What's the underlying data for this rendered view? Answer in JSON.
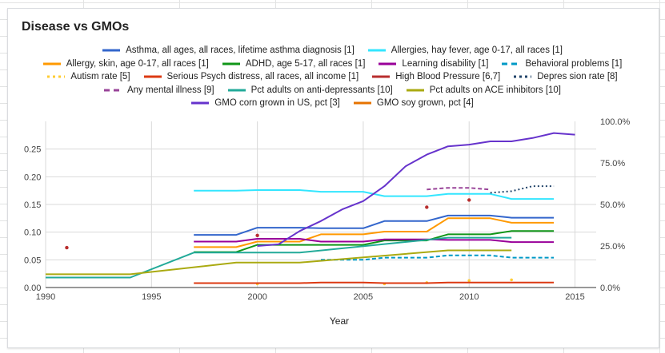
{
  "chart_data": {
    "type": "line",
    "title": "Disease vs GMOs",
    "xlabel": "Year",
    "ylabel": "",
    "xlim": [
      1990,
      2016
    ],
    "xticks": [
      "1990",
      "1995",
      "2000",
      "2005",
      "2010",
      "2015"
    ],
    "ylim_left": [
      0,
      0.3
    ],
    "yticks_left": [
      "0.00",
      "0.05",
      "0.10",
      "0.15",
      "0.20",
      "0.25"
    ],
    "ylim_right": [
      0,
      100
    ],
    "yticks_right": [
      "0.0%",
      "25.0%",
      "50.0%",
      "75.0%",
      "100.0%"
    ],
    "legend_position": "top",
    "grid": true,
    "series": [
      {
        "name": "Asthma, all ages, all races, lifetime asthma diagnosis [1]",
        "color": "#3366cc",
        "style": "solid",
        "axis": "left",
        "x": [
          1997,
          1998,
          1999,
          2000,
          2001,
          2002,
          2003,
          2004,
          2005,
          2006,
          2007,
          2008,
          2009,
          2010,
          2011,
          2012,
          2013,
          2014
        ],
        "y": [
          0.095,
          0.095,
          0.095,
          0.108,
          0.108,
          0.108,
          0.107,
          0.107,
          0.107,
          0.12,
          0.12,
          0.12,
          0.13,
          0.13,
          0.13,
          0.126,
          0.126,
          0.126
        ]
      },
      {
        "name": "Allergies, hay fever, age 0-17, all races [1]",
        "color": "#33e6ff",
        "style": "solid",
        "axis": "left",
        "x": [
          1997,
          1998,
          1999,
          2000,
          2001,
          2002,
          2003,
          2004,
          2005,
          2006,
          2007,
          2008,
          2009,
          2010,
          2011,
          2012,
          2013,
          2014
        ],
        "y": [
          0.175,
          0.175,
          0.175,
          0.176,
          0.176,
          0.176,
          0.173,
          0.173,
          0.173,
          0.165,
          0.165,
          0.165,
          0.169,
          0.169,
          0.169,
          0.16,
          0.16,
          0.16
        ]
      },
      {
        "name": "Allergy, skin, age 0-17, all races [1]",
        "color": "#ff9900",
        "style": "solid",
        "axis": "left",
        "x": [
          1997,
          1998,
          1999,
          2000,
          2001,
          2002,
          2003,
          2004,
          2005,
          2006,
          2007,
          2008,
          2009,
          2010,
          2011,
          2012,
          2013,
          2014
        ],
        "y": [
          0.073,
          0.073,
          0.073,
          0.083,
          0.083,
          0.083,
          0.096,
          0.096,
          0.096,
          0.101,
          0.101,
          0.101,
          0.125,
          0.125,
          0.125,
          0.117,
          0.117,
          0.117
        ]
      },
      {
        "name": "ADHD, age 5-17, all races [1]",
        "color": "#109618",
        "style": "solid",
        "axis": "left",
        "x": [
          1997,
          1998,
          1999,
          2000,
          2001,
          2002,
          2003,
          2004,
          2005,
          2006,
          2007,
          2008,
          2009,
          2010,
          2011,
          2012,
          2013,
          2014
        ],
        "y": [
          0.064,
          0.064,
          0.064,
          0.077,
          0.077,
          0.077,
          0.077,
          0.077,
          0.077,
          0.085,
          0.085,
          0.085,
          0.096,
          0.096,
          0.096,
          0.102,
          0.102,
          0.102
        ]
      },
      {
        "name": "Learning disability [1]",
        "color": "#990099",
        "style": "solid",
        "axis": "left",
        "x": [
          1997,
          1998,
          1999,
          2000,
          2001,
          2002,
          2003,
          2004,
          2005,
          2006,
          2007,
          2008,
          2009,
          2010,
          2011,
          2012,
          2013,
          2014
        ],
        "y": [
          0.083,
          0.083,
          0.083,
          0.088,
          0.088,
          0.088,
          0.083,
          0.083,
          0.083,
          0.087,
          0.087,
          0.087,
          0.086,
          0.086,
          0.086,
          0.082,
          0.082,
          0.082
        ]
      },
      {
        "name": "Behavioral problems [1]",
        "color": "#0099c6",
        "style": "dashed",
        "axis": "left",
        "x": [
          2003,
          2004,
          2005,
          2006,
          2007,
          2008,
          2009,
          2010,
          2011,
          2012,
          2013,
          2014
        ],
        "y": [
          0.05,
          0.05,
          0.05,
          0.054,
          0.054,
          0.054,
          0.058,
          0.058,
          0.058,
          0.054,
          0.054,
          0.054
        ]
      },
      {
        "name": "Autism rate [5]",
        "color": "#ffcc33",
        "style": "dotted",
        "axis": "left",
        "x": [
          2000,
          2006,
          2008,
          2010,
          2012
        ],
        "y": [
          0.0067,
          0.0067,
          0.0088,
          0.0125,
          0.0138
        ]
      },
      {
        "name": "Serious Psych distress, all races, all income [1]",
        "color": "#dc3912",
        "style": "solid",
        "axis": "left",
        "x": [
          1997,
          1998,
          1999,
          2000,
          2001,
          2002,
          2003,
          2004,
          2005,
          2006,
          2007,
          2008,
          2009,
          2010,
          2011,
          2012,
          2013,
          2014
        ],
        "y": [
          0.008,
          0.008,
          0.008,
          0.008,
          0.008,
          0.008,
          0.009,
          0.009,
          0.009,
          0.008,
          0.008,
          0.008,
          0.009,
          0.009,
          0.009,
          0.009,
          0.009,
          0.009
        ]
      },
      {
        "name": "High Blood Pressure [6,7]",
        "color": "#b82e2e",
        "style": "points",
        "axis": "left",
        "x": [
          1991,
          2000,
          2008,
          2010
        ],
        "y": [
          0.072,
          0.094,
          0.145,
          0.158
        ]
      },
      {
        "name": "Depres sion rate [8]",
        "color": "#22446a",
        "style": "dotted",
        "axis": "left",
        "x": [
          2011,
          2012,
          2013,
          2014
        ],
        "y": [
          0.171,
          0.174,
          0.183,
          0.183
        ]
      },
      {
        "name": "Any mental illness [9]",
        "color": "#994499",
        "style": "dashed",
        "axis": "left",
        "x": [
          2008,
          2009,
          2010,
          2011
        ],
        "y": [
          0.177,
          0.18,
          0.18,
          0.177
        ]
      },
      {
        "name": "Pct adults on anti-depressants [10]",
        "color": "#22aa99",
        "style": "solid",
        "axis": "left",
        "x": [
          1990,
          1994,
          1997,
          2002,
          2009,
          2012
        ],
        "y": [
          0.018,
          0.018,
          0.063,
          0.063,
          0.09,
          0.09
        ]
      },
      {
        "name": "Pct adults on ACE inhibitors [10]",
        "color": "#aaaa11",
        "style": "solid",
        "axis": "left",
        "x": [
          1990,
          1994,
          1999,
          2002,
          2009,
          2012
        ],
        "y": [
          0.024,
          0.024,
          0.045,
          0.045,
          0.067,
          0.067
        ]
      },
      {
        "name": "GMO corn grown in US, pct [3]",
        "color": "#6633cc",
        "style": "solid",
        "axis": "right",
        "x": [
          2000,
          2001,
          2002,
          2003,
          2004,
          2005,
          2006,
          2007,
          2008,
          2009,
          2010,
          2011,
          2012,
          2013,
          2014,
          2015
        ],
        "y": [
          25,
          26,
          34,
          40,
          47,
          52,
          61,
          73,
          80,
          85,
          86,
          88,
          88,
          90,
          93,
          92
        ]
      },
      {
        "name": "GMO soy grown, pct [4]",
        "color": "#e67300",
        "style": "none",
        "axis": "right",
        "x": [],
        "y": []
      }
    ]
  }
}
